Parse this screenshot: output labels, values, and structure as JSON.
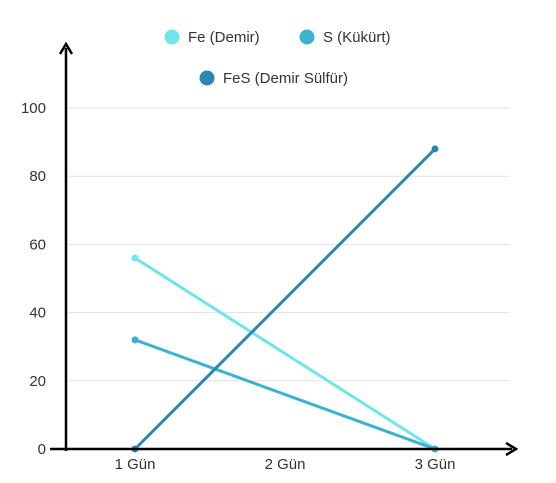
{
  "chart_data": {
    "type": "line",
    "categories": [
      "1 Gün",
      "2 Gün",
      "3 Gün"
    ],
    "ylim": [
      0,
      100
    ],
    "yticks": [
      0,
      20,
      40,
      60,
      80,
      100
    ],
    "grid": true,
    "legend_position": "top",
    "series": [
      {
        "name": "Fe (Demir)",
        "color": "#6ee6e8",
        "points": [
          [
            0,
            56
          ],
          [
            2,
            0
          ]
        ]
      },
      {
        "name": "S (Kükürt)",
        "color": "#3bb3d0",
        "points": [
          [
            0,
            32
          ],
          [
            2,
            0
          ]
        ]
      },
      {
        "name": "FeS (Demir Sülfür)",
        "color": "#2b86b4",
        "points": [
          [
            0,
            0
          ],
          [
            2,
            88
          ]
        ]
      }
    ],
    "title": "",
    "xlabel": "",
    "ylabel": ""
  }
}
